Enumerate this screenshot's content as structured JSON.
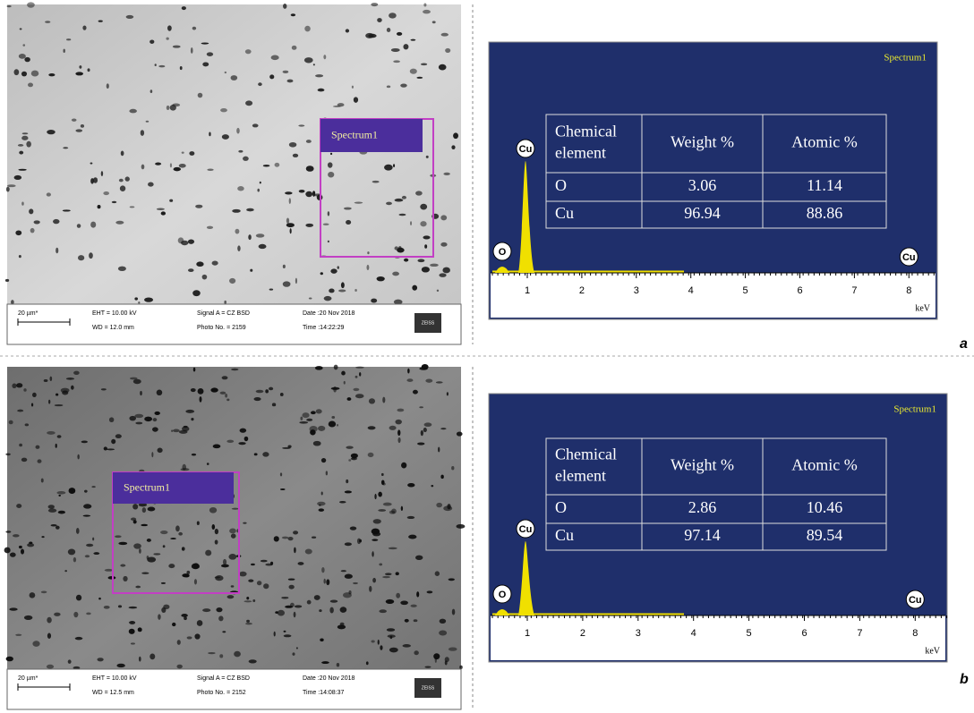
{
  "panels": [
    {
      "label": "a",
      "sem": {
        "spectrum_label": "Spectrum1",
        "scale": "20 µm*",
        "eht": "EHT = 10.00 kV",
        "wd": "WD = 12.0 mm",
        "signal": "Signal A = CZ BSD",
        "photo": "Photo No. = 2159",
        "date": "Date :20 Nov 2018",
        "time": "Time :14:22:29",
        "logo": "ZEISS"
      },
      "eds": {
        "title": "Spectrum1",
        "table": {
          "header": [
            "Chemical element",
            "Weight %",
            "Atomic %"
          ],
          "rows": [
            [
              "O",
              "3.06",
              "11.14"
            ],
            [
              "Cu",
              "96.94",
              "88.86"
            ]
          ]
        },
        "peaks": [
          "Cu",
          "O",
          "Cu"
        ],
        "xticks": [
          1,
          2,
          3,
          4,
          5,
          6,
          7,
          8
        ],
        "xunit": "keV"
      }
    },
    {
      "label": "b",
      "sem": {
        "spectrum_label": "Spectrum1",
        "scale": "20 µm*",
        "eht": "EHT = 10.00 kV",
        "wd": "WD = 12.5 mm",
        "signal": "Signal A = CZ BSD",
        "photo": "Photo No. = 2152",
        "date": "Date :20 Nov 2018",
        "time": "Time :14:08:37",
        "logo": "ZEISS"
      },
      "eds": {
        "title": "Spectrum1",
        "table": {
          "header": [
            "Chemical element",
            "Weight %",
            "Atomic %"
          ],
          "rows": [
            [
              "O",
              "2.86",
              "10.46"
            ],
            [
              "Cu",
              "97.14",
              "89.54"
            ]
          ]
        },
        "peaks": [
          "Cu",
          "O",
          "Cu"
        ],
        "xticks": [
          1,
          2,
          3,
          4,
          5,
          6,
          7,
          8
        ],
        "xunit": "keV"
      }
    }
  ]
}
